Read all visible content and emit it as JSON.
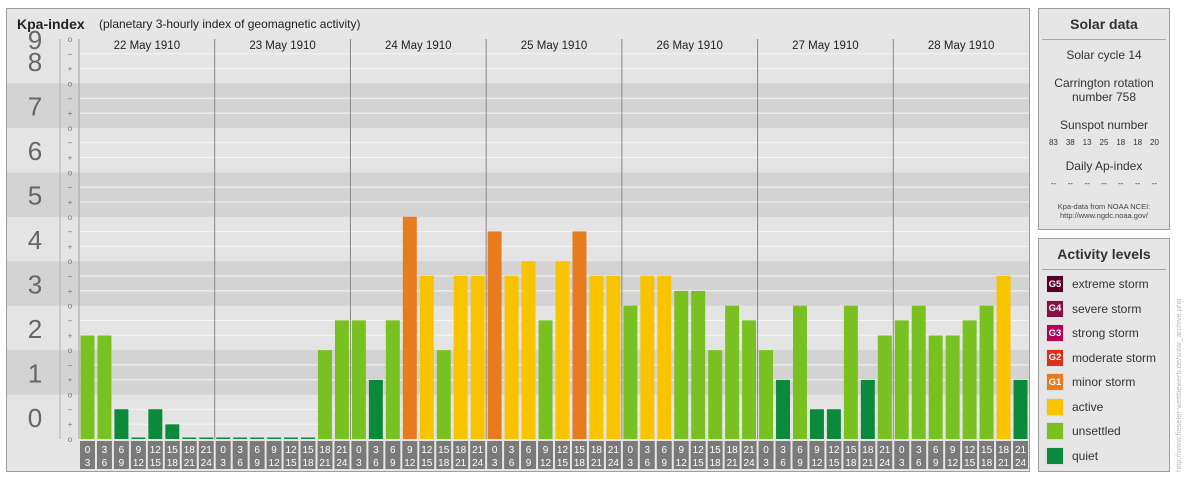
{
  "header": {
    "title": "Kpa-index",
    "subtitle": "(planetary 3-hourly index of geomagnetic activity)"
  },
  "chart_data": {
    "type": "bar",
    "title": "Kpa-index",
    "subtitle": "(planetary 3-hourly index of geomagnetic activity)",
    "ylim": [
      0,
      9
    ],
    "y_ticks": [
      "0",
      "1",
      "2",
      "3",
      "4",
      "5",
      "6",
      "7",
      "8",
      "9"
    ],
    "minor_marks": [
      "+",
      "o",
      "−"
    ],
    "days": [
      "22 May 1910",
      "23 May 1910",
      "24 May 1910",
      "25 May 1910",
      "26 May 1910",
      "27 May 1910",
      "28 May 1910"
    ],
    "interval_starts": [
      "0",
      "3",
      "6",
      "9",
      "12",
      "15",
      "18",
      "21"
    ],
    "interval_ends": [
      "3",
      "6",
      "9",
      "12",
      "15",
      "18",
      "21",
      "24"
    ],
    "values": [
      [
        2.33,
        2.33,
        0.67,
        0.0,
        0.67,
        0.33,
        0.0,
        0.0
      ],
      [
        0.0,
        0.0,
        0.0,
        0.0,
        0.0,
        0.0,
        2.0,
        2.67
      ],
      [
        2.67,
        1.33,
        2.67,
        5.0,
        3.67,
        2.0,
        3.67,
        3.67
      ],
      [
        4.67,
        3.67,
        4.0,
        2.67,
        4.0,
        4.67,
        3.67,
        3.67
      ],
      [
        3.0,
        3.67,
        3.67,
        3.33,
        3.33,
        2.0,
        3.0,
        2.67
      ],
      [
        2.0,
        1.33,
        3.0,
        0.67,
        0.67,
        3.0,
        1.33,
        2.33
      ],
      [
        2.67,
        3.0,
        2.33,
        2.33,
        2.67,
        3.0,
        3.67,
        1.33
      ]
    ],
    "level_colors": {
      "quiet": "#0a8a3a",
      "unsettled": "#79c121",
      "active": "#f8c400",
      "minor_storm": "#e87b1e",
      "moderate_storm": "#d6321c",
      "strong_storm": "#b5005a",
      "severe_storm": "#8a0f46",
      "extreme_storm": "#5a0026"
    }
  },
  "solar": {
    "title": "Solar data",
    "cycle": "Solar cycle 14",
    "carrington_line1": "Carrington rotation",
    "carrington_line2": "number 758",
    "sunspot_title": "Sunspot number",
    "sunspots": [
      "83",
      "38",
      "13",
      "25",
      "18",
      "18",
      "20"
    ],
    "ap_title": "Daily Ap-index",
    "ap_values": [
      "--",
      "--",
      "--",
      "--",
      "--",
      "--",
      "--"
    ],
    "source_line1": "Kpa-data from NOAA NCEI:",
    "source_line2": "http://www.ngdc.noaa.gov/"
  },
  "activity": {
    "title": "Activity levels",
    "levels": [
      {
        "code": "G5",
        "label": "extreme storm",
        "color": "#5a0026"
      },
      {
        "code": "G4",
        "label": "severe storm",
        "color": "#8a0f46"
      },
      {
        "code": "G3",
        "label": "strong storm",
        "color": "#b5005a"
      },
      {
        "code": "G2",
        "label": "moderate storm",
        "color": "#d6321c"
      },
      {
        "code": "G1",
        "label": "minor storm",
        "color": "#e87b1e"
      },
      {
        "code": "",
        "label": "active",
        "color": "#f8c400"
      },
      {
        "code": "",
        "label": "unsettled",
        "color": "#79c121"
      },
      {
        "code": "",
        "label": "quiet",
        "color": "#0a8a3a"
      }
    ]
  },
  "watermark": "http://www.fieseler-wettbewerb.de/solar_archive.php"
}
